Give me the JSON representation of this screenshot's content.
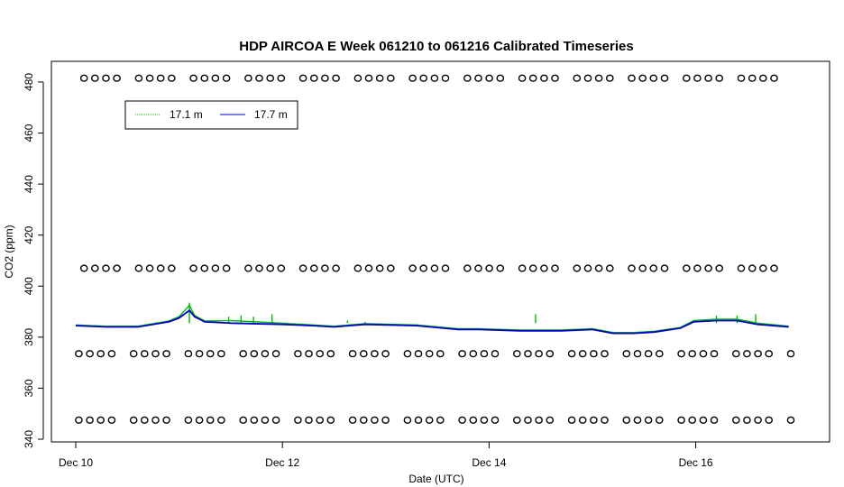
{
  "chart_data": {
    "type": "line",
    "title": "HDP AIRCOA E  Week 061210 to 061216  Calibrated Timeseries",
    "xlabel": "Date (UTC)",
    "ylabel": "CO2 (ppm)",
    "x_ticks": [
      "Dec 10",
      "Dec 12",
      "Dec 14",
      "Dec 16"
    ],
    "y_ticks": [
      "340",
      "360",
      "380",
      "400",
      "420",
      "440",
      "460",
      "480"
    ],
    "ylim": [
      340,
      484
    ],
    "xlim": [
      "Dec 10",
      "Dec 17"
    ],
    "legend": {
      "position": "top-left",
      "entries": [
        "17.1 m",
        "17.7 m"
      ]
    },
    "colors": {
      "s171": "#00bb00",
      "s177": "#0000cc",
      "markers": "#000000"
    },
    "series": [
      {
        "name": "17.7 m",
        "x": [
          0.0,
          0.3,
          0.6,
          0.9,
          1.0,
          1.1,
          1.15,
          1.25,
          1.5,
          2.0,
          2.3,
          2.5,
          2.8,
          3.3,
          3.7,
          3.9,
          4.3,
          4.7,
          5.0,
          5.2,
          5.4,
          5.6,
          5.85,
          5.98,
          6.2,
          6.4,
          6.6,
          6.9
        ],
        "values": [
          384.5,
          384.0,
          384.0,
          386.0,
          387.5,
          390.5,
          388.0,
          386.0,
          385.5,
          385.0,
          384.5,
          384.0,
          385.0,
          384.5,
          383.0,
          383.0,
          382.5,
          382.5,
          383.0,
          381.5,
          381.5,
          382.0,
          383.5,
          386.0,
          386.5,
          386.5,
          385.0,
          384.0
        ]
      },
      {
        "name": "17.1 m",
        "x": [
          0.0,
          0.3,
          0.6,
          0.9,
          1.0,
          1.1,
          1.15,
          1.25,
          1.5,
          2.0,
          2.3,
          2.5,
          2.8,
          3.3,
          3.7,
          3.9,
          4.3,
          4.7,
          5.0,
          5.2,
          5.4,
          5.6,
          5.85,
          5.98,
          6.2,
          6.4,
          6.6,
          6.9
        ],
        "values": [
          384.8,
          384.3,
          384.3,
          386.3,
          388.0,
          392.5,
          388.5,
          386.3,
          386.5,
          385.5,
          384.8,
          384.3,
          385.3,
          384.8,
          383.3,
          383.3,
          382.8,
          382.8,
          383.3,
          381.8,
          381.8,
          382.3,
          383.8,
          386.5,
          387.0,
          387.0,
          385.5,
          384.3
        ],
        "spikes": [
          {
            "x": 1.1,
            "value": 393.5
          },
          {
            "x": 1.48,
            "value": 388.0
          },
          {
            "x": 1.6,
            "value": 388.5
          },
          {
            "x": 1.72,
            "value": 388.0
          },
          {
            "x": 1.9,
            "value": 389.0
          },
          {
            "x": 2.63,
            "value": 386.5
          },
          {
            "x": 2.8,
            "value": 386.0
          },
          {
            "x": 4.45,
            "value": 389.0
          },
          {
            "x": 6.2,
            "value": 388.5
          },
          {
            "x": 6.4,
            "value": 388.5
          },
          {
            "x": 6.58,
            "value": 389.0
          }
        ]
      }
    ],
    "marker_rows": [
      {
        "value": 481.5,
        "x_start": 0.08,
        "x_end": 6.95,
        "step": 0.106
      },
      {
        "value": 407.0,
        "x_start": 0.08,
        "x_end": 6.95,
        "step": 0.106
      },
      {
        "value": 373.5,
        "x_start": 0.03,
        "x_end": 6.95,
        "step": 0.106
      },
      {
        "value": 347.5,
        "x_start": 0.03,
        "x_end": 6.95,
        "step": 0.106
      }
    ]
  }
}
